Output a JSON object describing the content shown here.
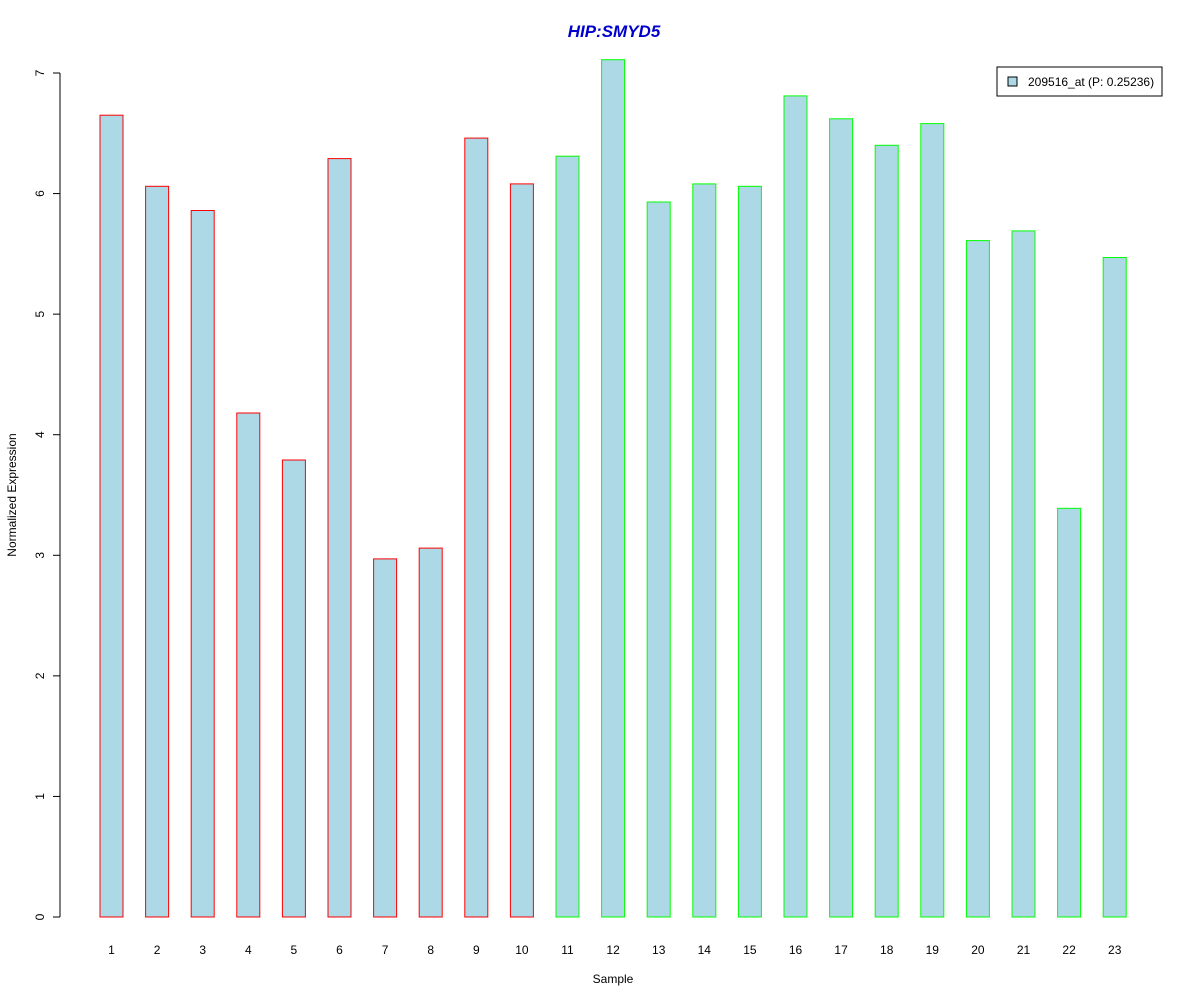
{
  "chart_data": {
    "type": "bar",
    "title": "HIP:SMYD5",
    "xlabel": "Sample",
    "ylabel": "Normalized Expression",
    "ylim": [
      0,
      7
    ],
    "yticks": [
      0,
      1,
      2,
      3,
      4,
      5,
      6,
      7
    ],
    "grid": false,
    "legend_position": "top-right",
    "categories": [
      "1",
      "2",
      "3",
      "4",
      "5",
      "6",
      "7",
      "8",
      "9",
      "10",
      "11",
      "12",
      "13",
      "14",
      "15",
      "16",
      "17",
      "18",
      "19",
      "20",
      "21",
      "22",
      "23"
    ],
    "series": [
      {
        "name": "209516_at (P: 0.25236)",
        "values": [
          6.65,
          6.06,
          5.86,
          4.18,
          3.79,
          6.29,
          2.97,
          3.06,
          6.46,
          6.08,
          6.31,
          7.11,
          5.93,
          6.08,
          6.06,
          6.81,
          6.62,
          6.4,
          6.58,
          5.61,
          5.69,
          3.39,
          5.47
        ],
        "groups": [
          "red",
          "red",
          "red",
          "red",
          "red",
          "red",
          "red",
          "red",
          "red",
          "red",
          "green",
          "green",
          "green",
          "green",
          "green",
          "green",
          "green",
          "green",
          "green",
          "green",
          "green",
          "green",
          "green"
        ]
      }
    ],
    "colors": {
      "title": "#0000cc",
      "fill": "#add8e6",
      "red": "#ff0000",
      "green": "#00ff00"
    }
  }
}
